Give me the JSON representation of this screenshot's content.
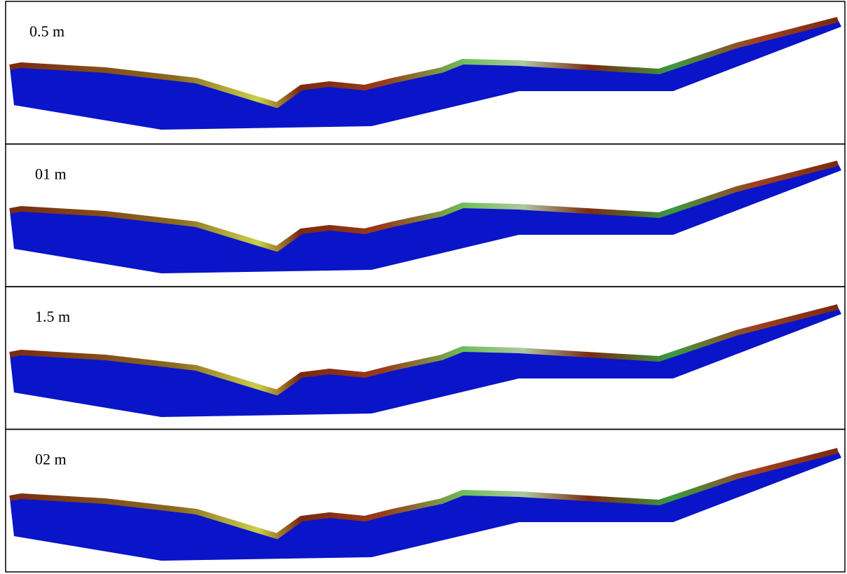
{
  "panels": [
    {
      "label": "0.5 m"
    },
    {
      "label": "01 m"
    },
    {
      "label": "1.5 m"
    },
    {
      "label": "02 m"
    }
  ]
}
